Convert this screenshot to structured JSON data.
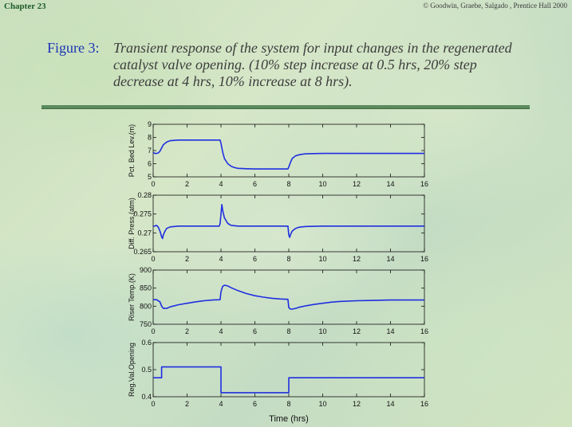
{
  "header": {
    "chapter": "Chapter 23",
    "copyright": "© Goodwin, Graebe, Salgado , Prentice Hall 2000"
  },
  "figure": {
    "label": "Figure 3:",
    "caption": "Transient response of the system for input changes in the regenerated catalyst valve opening. (10% step increase at 0.5 hrs, 20% step decrease at 4 hrs, 10% increase at 8 hrs)."
  },
  "colors": {
    "line": "#1f2fe0",
    "axis": "#111111",
    "figure_label": "#1a34b8",
    "divider": "#5b8a5e"
  },
  "chart_data": [
    {
      "type": "line",
      "ylabel": "Pct. Bed Lev.(m)",
      "xlabel": "",
      "xlim": [
        0,
        16
      ],
      "ylim": [
        5,
        9
      ],
      "xticks": [
        0,
        2,
        4,
        6,
        8,
        10,
        12,
        14,
        16
      ],
      "yticks": [
        5,
        6,
        7,
        8,
        9
      ],
      "ytick_labels": [
        "5",
        "6",
        "7",
        "8",
        "9"
      ],
      "grid": false,
      "series": [
        {
          "x": [
            0,
            0.1,
            0.2,
            0.3,
            0.4,
            0.5,
            0.6,
            0.8,
            1.0,
            1.5,
            2,
            3,
            3.5,
            3.95,
            4.0,
            4.1,
            4.2,
            4.4,
            4.6,
            4.8,
            5.0,
            5.5,
            6,
            7,
            7.95,
            8.0,
            8.1,
            8.2,
            8.4,
            8.6,
            8.8,
            9.0,
            9.5,
            10,
            12,
            14,
            16
          ],
          "y": [
            6.85,
            6.78,
            6.78,
            6.82,
            6.95,
            7.2,
            7.45,
            7.65,
            7.75,
            7.8,
            7.8,
            7.8,
            7.8,
            7.8,
            7.55,
            6.9,
            6.4,
            6.0,
            5.8,
            5.7,
            5.65,
            5.62,
            5.6,
            5.6,
            5.6,
            5.75,
            6.1,
            6.4,
            6.6,
            6.68,
            6.72,
            6.75,
            6.77,
            6.78,
            6.78,
            6.78,
            6.78
          ]
        }
      ]
    },
    {
      "type": "line",
      "ylabel": "Diff. Press.(atm)",
      "xlabel": "",
      "xlim": [
        0,
        16
      ],
      "ylim": [
        0.265,
        0.28
      ],
      "xticks": [
        0,
        2,
        4,
        6,
        8,
        10,
        12,
        14,
        16
      ],
      "yticks": [
        0.265,
        0.27,
        0.275,
        0.28
      ],
      "ytick_labels": [
        "0.265",
        "0.27",
        "0.275",
        "0.28"
      ],
      "grid": false,
      "series": [
        {
          "x": [
            0,
            0.1,
            0.2,
            0.3,
            0.4,
            0.5,
            0.55,
            0.6,
            0.7,
            0.8,
            1.0,
            1.5,
            2,
            3,
            3.9,
            3.95,
            4.0,
            4.05,
            4.1,
            4.2,
            4.4,
            4.6,
            5,
            6,
            7,
            7.95,
            8.0,
            8.05,
            8.1,
            8.2,
            8.4,
            8.6,
            9,
            10,
            12,
            14,
            16
          ],
          "y": [
            0.2718,
            0.2718,
            0.272,
            0.2715,
            0.2705,
            0.269,
            0.2685,
            0.2695,
            0.2705,
            0.2712,
            0.2716,
            0.2718,
            0.2718,
            0.2718,
            0.2718,
            0.2725,
            0.275,
            0.2775,
            0.276,
            0.274,
            0.2725,
            0.272,
            0.2718,
            0.2718,
            0.2718,
            0.2718,
            0.2695,
            0.2688,
            0.2695,
            0.2705,
            0.2712,
            0.2715,
            0.2717,
            0.2718,
            0.2718,
            0.2718,
            0.2718
          ]
        }
      ]
    },
    {
      "type": "line",
      "ylabel": "Riser Temp.(K)",
      "xlabel": "",
      "xlim": [
        0,
        16
      ],
      "ylim": [
        750,
        900
      ],
      "xticks": [
        0,
        2,
        4,
        6,
        8,
        10,
        12,
        14,
        16
      ],
      "yticks": [
        750,
        800,
        850,
        900
      ],
      "ytick_labels": [
        "750",
        "800",
        "850",
        "900"
      ],
      "grid": false,
      "series": [
        {
          "x": [
            0,
            0.2,
            0.4,
            0.5,
            0.6,
            0.8,
            1.0,
            1.5,
            2,
            2.5,
            3,
            3.5,
            3.95,
            4.0,
            4.1,
            4.2,
            4.4,
            4.6,
            5,
            5.5,
            6,
            6.5,
            7,
            7.5,
            7.95,
            8.0,
            8.1,
            8.2,
            8.4,
            8.6,
            9,
            9.5,
            10,
            10.5,
            11,
            12,
            13,
            14,
            16
          ],
          "y": [
            818,
            818,
            812,
            800,
            794,
            794,
            798,
            804,
            808,
            812,
            815,
            817,
            818,
            840,
            855,
            858,
            856,
            851,
            843,
            835,
            829,
            825,
            822,
            820,
            819,
            796,
            792,
            792,
            794,
            797,
            801,
            805,
            808,
            811,
            813,
            815,
            816,
            817,
            817
          ]
        }
      ]
    },
    {
      "type": "line",
      "ylabel": "Reg.Val.Opening",
      "xlabel": "Time (hrs)",
      "xlim": [
        0,
        16
      ],
      "ylim": [
        0.4,
        0.6
      ],
      "xticks": [
        0,
        2,
        4,
        6,
        8,
        10,
        12,
        14,
        16
      ],
      "yticks": [
        0.4,
        0.5,
        0.6
      ],
      "ytick_labels": [
        "0.4",
        "0.5",
        "0.6"
      ],
      "grid": false,
      "series": [
        {
          "x": [
            0,
            0.5,
            0.5,
            4,
            4,
            8,
            8,
            16
          ],
          "y": [
            0.47,
            0.47,
            0.51,
            0.51,
            0.415,
            0.415,
            0.47,
            0.47
          ]
        }
      ]
    }
  ]
}
